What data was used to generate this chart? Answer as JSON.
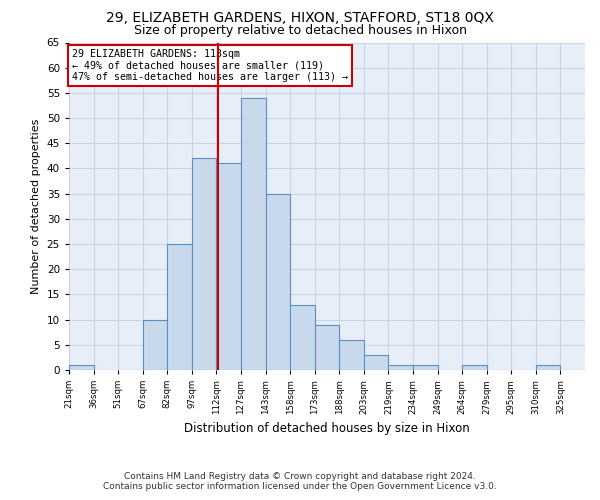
{
  "title": "29, ELIZABETH GARDENS, HIXON, STAFFORD, ST18 0QX",
  "subtitle": "Size of property relative to detached houses in Hixon",
  "xlabel": "Distribution of detached houses by size in Hixon",
  "ylabel": "Number of detached properties",
  "footer_line1": "Contains HM Land Registry data © Crown copyright and database right 2024.",
  "footer_line2": "Contains public sector information licensed under the Open Government Licence v3.0.",
  "counts": [
    1,
    0,
    0,
    10,
    25,
    42,
    41,
    54,
    35,
    13,
    9,
    6,
    3,
    1,
    1,
    0,
    1,
    0,
    0,
    1,
    0
  ],
  "bar_face_color": "#c9d9ec",
  "bar_edge_color": "#5a8fc0",
  "reference_line_x": 6,
  "reference_line_color": "#cc0000",
  "annotation_box_text": "29 ELIZABETH GARDENS: 113sqm\n← 49% of detached houses are smaller (119)\n47% of semi-detached houses are larger (113) →",
  "annotation_box_color": "#cc0000",
  "annotation_box_bg": "#ffffff",
  "ylim": [
    0,
    65
  ],
  "yticks": [
    0,
    5,
    10,
    15,
    20,
    25,
    30,
    35,
    40,
    45,
    50,
    55,
    60,
    65
  ],
  "grid_color": "#c8d4e8",
  "bg_color": "#e8eef8",
  "title_fontsize": 10,
  "subtitle_fontsize": 9,
  "footer_fontsize": 6.5,
  "tick_labels": [
    "21sqm",
    "36sqm",
    "51sqm",
    "67sqm",
    "82sqm",
    "97sqm",
    "112sqm",
    "127sqm",
    "143sqm",
    "158sqm",
    "173sqm",
    "188sqm",
    "203sqm",
    "219sqm",
    "234sqm",
    "249sqm",
    "264sqm",
    "279sqm",
    "295sqm",
    "310sqm",
    "325sqm"
  ]
}
